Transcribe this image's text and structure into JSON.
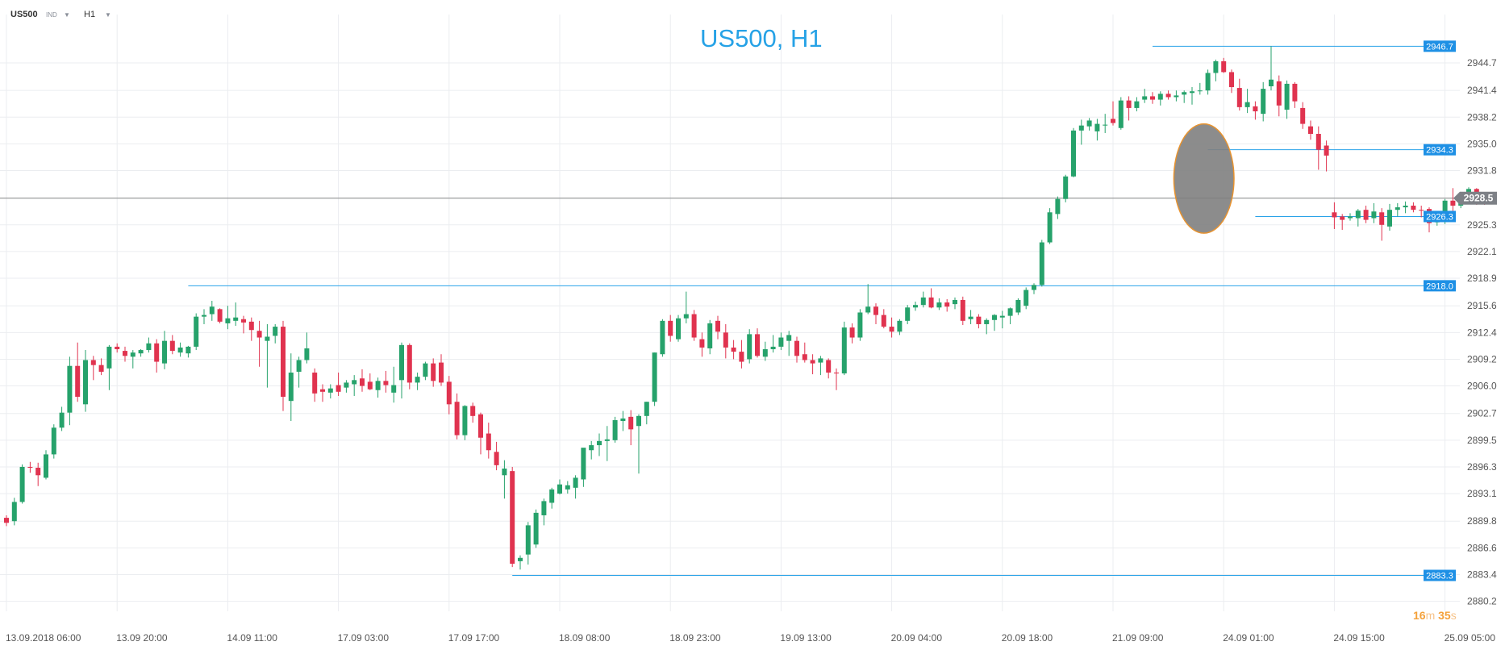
{
  "header": {
    "symbol": "US500",
    "class": "IND",
    "timeframe": "H1"
  },
  "chart_data": {
    "type": "candlestick",
    "title": "US500, H1",
    "ylim": [
      2879.0,
      2950.5
    ],
    "y_ticks": [
      2880.2,
      2883.4,
      2886.6,
      2889.8,
      2893.1,
      2896.3,
      2899.5,
      2902.7,
      2906.0,
      2909.2,
      2912.4,
      2915.6,
      2918.9,
      2922.1,
      2925.3,
      2928.5,
      2931.8,
      2935.0,
      2938.2,
      2941.4,
      2944.7
    ],
    "x_ticks": [
      {
        "label": "13.09.2018  06:00",
        "bar": 0
      },
      {
        "label": "13.09  20:00",
        "bar": 14
      },
      {
        "label": "14.09  11:00",
        "bar": 28
      },
      {
        "label": "17.09  03:00",
        "bar": 42
      },
      {
        "label": "17.09  17:00",
        "bar": 56
      },
      {
        "label": "18.09  08:00",
        "bar": 70
      },
      {
        "label": "18.09  23:00",
        "bar": 84
      },
      {
        "label": "19.09  13:00",
        "bar": 98
      },
      {
        "label": "20.09  04:00",
        "bar": 112
      },
      {
        "label": "20.09  18:00",
        "bar": 126
      },
      {
        "label": "21.09  09:00",
        "bar": 140
      },
      {
        "label": "24.09  01:00",
        "bar": 154
      },
      {
        "label": "24.09  15:00",
        "bar": 168
      },
      {
        "label": "25.09  05:00",
        "bar": 182
      }
    ],
    "candles": [
      [
        2890.2,
        2890.5,
        2889.2,
        2889.6
      ],
      [
        2889.8,
        2892.6,
        2889.3,
        2892.1
      ],
      [
        2892.1,
        2896.6,
        2891.9,
        2896.3
      ],
      [
        2896.3,
        2896.9,
        2895.6,
        2896.2
      ],
      [
        2896.2,
        2896.8,
        2894.0,
        2895.3
      ],
      [
        2895.0,
        2898.3,
        2894.8,
        2897.8
      ],
      [
        2897.8,
        2901.4,
        2897.3,
        2901.0
      ],
      [
        2901.0,
        2903.5,
        2900.6,
        2902.8
      ],
      [
        2902.8,
        2909.5,
        2901.3,
        2908.4
      ],
      [
        2908.4,
        2911.2,
        2904.1,
        2904.7
      ],
      [
        2903.8,
        2910.3,
        2902.9,
        2909.1
      ],
      [
        2909.1,
        2909.6,
        2906.7,
        2908.5
      ],
      [
        2908.5,
        2909.3,
        2907.3,
        2907.7
      ],
      [
        2908.1,
        2910.9,
        2905.5,
        2910.7
      ],
      [
        2910.7,
        2911.1,
        2910.0,
        2910.4
      ],
      [
        2910.2,
        2910.7,
        2908.9,
        2909.6
      ],
      [
        2909.5,
        2910.3,
        2908.1,
        2910.0
      ],
      [
        2909.9,
        2910.4,
        2909.5,
        2910.3
      ],
      [
        2910.3,
        2911.8,
        2910.0,
        2911.1
      ],
      [
        2911.1,
        2911.6,
        2907.6,
        2908.9
      ],
      [
        2908.7,
        2912.6,
        2908.0,
        2911.4
      ],
      [
        2911.4,
        2912.1,
        2909.8,
        2910.2
      ],
      [
        2910.0,
        2911.2,
        2909.5,
        2910.6
      ],
      [
        2909.9,
        2910.8,
        2909.4,
        2910.7
      ],
      [
        2910.7,
        2914.7,
        2910.3,
        2914.3
      ],
      [
        2914.3,
        2915.2,
        2913.4,
        2914.5
      ],
      [
        2914.6,
        2916.2,
        2913.8,
        2915.5
      ],
      [
        2915.2,
        2915.3,
        2913.5,
        2913.7
      ],
      [
        2913.5,
        2915.6,
        2912.8,
        2914.1
      ],
      [
        2913.8,
        2916.0,
        2913.2,
        2914.2
      ],
      [
        2914.0,
        2914.4,
        2912.3,
        2913.6
      ],
      [
        2913.7,
        2914.2,
        2911.4,
        2912.7
      ],
      [
        2912.6,
        2913.8,
        2908.3,
        2911.8
      ],
      [
        2911.4,
        2913.4,
        2905.8,
        2911.9
      ],
      [
        2912.0,
        2913.4,
        2911.1,
        2913.1
      ],
      [
        2913.1,
        2913.8,
        2903.0,
        2904.7
      ],
      [
        2904.2,
        2909.9,
        2901.8,
        2907.6
      ],
      [
        2907.7,
        2909.5,
        2905.8,
        2909.1
      ],
      [
        2909.1,
        2912.4,
        2908.7,
        2910.5
      ],
      [
        2907.6,
        2908.1,
        2904.1,
        2905.1
      ],
      [
        2905.6,
        2906.2,
        2904.1,
        2905.3
      ],
      [
        2905.2,
        2906.2,
        2904.5,
        2905.7
      ],
      [
        2906.1,
        2907.6,
        2904.8,
        2905.3
      ],
      [
        2905.8,
        2906.7,
        2905.2,
        2906.4
      ],
      [
        2906.2,
        2907.3,
        2904.8,
        2906.7
      ],
      [
        2906.9,
        2908.0,
        2905.3,
        2906.0
      ],
      [
        2906.5,
        2907.5,
        2905.5,
        2905.6
      ],
      [
        2905.5,
        2907.0,
        2904.6,
        2906.6
      ],
      [
        2906.6,
        2907.8,
        2905.2,
        2906.1
      ],
      [
        2905.2,
        2908.3,
        2904.0,
        2906.1
      ],
      [
        2906.7,
        2911.2,
        2904.5,
        2910.9
      ],
      [
        2910.9,
        2911.1,
        2905.6,
        2906.4
      ],
      [
        2906.4,
        2907.6,
        2905.5,
        2907.1
      ],
      [
        2907.1,
        2908.9,
        2906.7,
        2908.7
      ],
      [
        2908.7,
        2909.3,
        2905.9,
        2906.6
      ],
      [
        2908.8,
        2909.8,
        2906.0,
        2906.4
      ],
      [
        2906.5,
        2907.2,
        2902.6,
        2903.8
      ],
      [
        2904.1,
        2905.1,
        2899.6,
        2900.1
      ],
      [
        2900.1,
        2903.7,
        2899.5,
        2903.6
      ],
      [
        2903.6,
        2904.0,
        2901.6,
        2902.4
      ],
      [
        2902.6,
        2902.8,
        2897.8,
        2899.8
      ],
      [
        2900.3,
        2901.6,
        2897.3,
        2898.3
      ],
      [
        2898.1,
        2899.3,
        2895.9,
        2896.5
      ],
      [
        2895.3,
        2897.1,
        2892.5,
        2896.1
      ],
      [
        2895.8,
        2896.3,
        2884.3,
        2884.7
      ],
      [
        2885.0,
        2885.7,
        2884.0,
        2885.4
      ],
      [
        2885.8,
        2889.7,
        2884.6,
        2889.3
      ],
      [
        2887.0,
        2891.2,
        2886.6,
        2890.8
      ],
      [
        2890.5,
        2892.5,
        2889.3,
        2892.2
      ],
      [
        2892.0,
        2893.8,
        2891.3,
        2893.6
      ],
      [
        2893.1,
        2894.8,
        2893.0,
        2894.2
      ],
      [
        2893.6,
        2894.6,
        2893.1,
        2894.1
      ],
      [
        2893.8,
        2895.3,
        2892.5,
        2895.0
      ],
      [
        2894.8,
        2898.5,
        2893.9,
        2898.6
      ],
      [
        2898.3,
        2899.4,
        2897.2,
        2898.9
      ],
      [
        2898.9,
        2900.3,
        2897.6,
        2899.4
      ],
      [
        2899.4,
        2901.2,
        2897.0,
        2899.6
      ],
      [
        2899.5,
        2902.3,
        2899.2,
        2901.9
      ],
      [
        2901.8,
        2903.0,
        2900.6,
        2902.1
      ],
      [
        2902.3,
        2903.1,
        2898.9,
        2900.8
      ],
      [
        2901.2,
        2902.6,
        2895.5,
        2902.4
      ],
      [
        2902.4,
        2904.1,
        2901.4,
        2904.1
      ],
      [
        2904.1,
        2910.0,
        2903.6,
        2910.0
      ],
      [
        2909.8,
        2914.0,
        2909.5,
        2913.8
      ],
      [
        2913.8,
        2914.5,
        2911.3,
        2912.0
      ],
      [
        2911.6,
        2914.5,
        2911.3,
        2914.1
      ],
      [
        2914.1,
        2917.3,
        2913.5,
        2914.6
      ],
      [
        2914.6,
        2915.1,
        2911.4,
        2911.8
      ],
      [
        2911.6,
        2912.4,
        2909.5,
        2910.6
      ],
      [
        2910.5,
        2913.9,
        2909.8,
        2913.5
      ],
      [
        2913.8,
        2914.4,
        2911.6,
        2912.5
      ],
      [
        2912.4,
        2913.4,
        2909.3,
        2910.6
      ],
      [
        2910.6,
        2911.5,
        2909.2,
        2910.1
      ],
      [
        2910.1,
        2911.5,
        2908.1,
        2908.9
      ],
      [
        2909.2,
        2912.8,
        2908.7,
        2912.2
      ],
      [
        2912.2,
        2912.9,
        2909.4,
        2909.6
      ],
      [
        2909.5,
        2911.3,
        2909.0,
        2910.4
      ],
      [
        2910.4,
        2912.1,
        2910.0,
        2910.7
      ],
      [
        2910.7,
        2912.4,
        2910.3,
        2911.8
      ],
      [
        2911.4,
        2912.6,
        2909.6,
        2912.1
      ],
      [
        2911.4,
        2911.9,
        2908.8,
        2909.6
      ],
      [
        2909.8,
        2911.2,
        2908.8,
        2909.1
      ],
      [
        2909.1,
        2909.8,
        2907.4,
        2908.7
      ],
      [
        2908.8,
        2909.6,
        2907.3,
        2909.3
      ],
      [
        2909.1,
        2909.3,
        2906.9,
        2907.6
      ],
      [
        2907.6,
        2908.1,
        2905.5,
        2907.5
      ],
      [
        2907.5,
        2913.7,
        2907.3,
        2913.0
      ],
      [
        2913.0,
        2913.5,
        2911.1,
        2911.8
      ],
      [
        2911.8,
        2915.2,
        2911.4,
        2914.8
      ],
      [
        2914.8,
        2918.2,
        2914.6,
        2915.5
      ],
      [
        2915.5,
        2915.9,
        2913.4,
        2914.5
      ],
      [
        2914.5,
        2915.2,
        2912.9,
        2913.1
      ],
      [
        2913.1,
        2914.2,
        2911.8,
        2912.5
      ],
      [
        2912.5,
        2914.0,
        2912.1,
        2913.8
      ],
      [
        2913.8,
        2915.7,
        2913.4,
        2915.4
      ],
      [
        2915.4,
        2916.1,
        2915.0,
        2915.7
      ],
      [
        2915.7,
        2917.3,
        2915.4,
        2916.6
      ],
      [
        2916.6,
        2917.7,
        2915.3,
        2915.4
      ],
      [
        2915.4,
        2916.5,
        2915.1,
        2916.0
      ],
      [
        2916.0,
        2916.4,
        2914.9,
        2915.5
      ],
      [
        2915.8,
        2916.6,
        2915.2,
        2916.3
      ],
      [
        2916.3,
        2916.7,
        2913.3,
        2913.8
      ],
      [
        2914.0,
        2915.1,
        2913.4,
        2914.3
      ],
      [
        2914.3,
        2914.6,
        2912.9,
        2913.4
      ],
      [
        2913.4,
        2914.1,
        2912.2,
        2913.9
      ],
      [
        2913.9,
        2914.6,
        2912.6,
        2914.5
      ],
      [
        2914.2,
        2915.0,
        2912.9,
        2914.4
      ],
      [
        2914.4,
        2915.4,
        2913.4,
        2915.3
      ],
      [
        2914.8,
        2916.5,
        2914.5,
        2916.3
      ],
      [
        2915.6,
        2917.8,
        2915.2,
        2917.5
      ],
      [
        2917.5,
        2918.3,
        2917.0,
        2918.1
      ],
      [
        2918.1,
        2923.5,
        2917.9,
        2923.2
      ],
      [
        2923.2,
        2927.3,
        2923.0,
        2926.8
      ],
      [
        2926.6,
        2928.7,
        2926.0,
        2928.4
      ],
      [
        2928.4,
        2931.3,
        2928.0,
        2931.1
      ],
      [
        2931.1,
        2936.9,
        2931.0,
        2936.6
      ],
      [
        2936.6,
        2937.9,
        2934.9,
        2937.2
      ],
      [
        2937.1,
        2938.1,
        2936.6,
        2937.8
      ],
      [
        2936.5,
        2938.0,
        2935.4,
        2937.4
      ],
      [
        2937.2,
        2938.6,
        2936.3,
        2937.3
      ],
      [
        2938.0,
        2940.1,
        2937.2,
        2937.5
      ],
      [
        2936.9,
        2940.6,
        2936.7,
        2940.2
      ],
      [
        2940.2,
        2940.7,
        2937.8,
        2939.3
      ],
      [
        2939.3,
        2940.6,
        2938.9,
        2940.1
      ],
      [
        2940.3,
        2941.6,
        2939.9,
        2940.7
      ],
      [
        2940.7,
        2941.2,
        2939.8,
        2940.3
      ],
      [
        2940.3,
        2941.3,
        2939.6,
        2941.0
      ],
      [
        2941.0,
        2941.4,
        2940.3,
        2940.6
      ],
      [
        2940.6,
        2941.4,
        2940.1,
        2940.8
      ],
      [
        2940.9,
        2941.4,
        2939.9,
        2941.2
      ],
      [
        2941.1,
        2941.8,
        2939.7,
        2941.3
      ],
      [
        2941.3,
        2942.3,
        2940.9,
        2941.4
      ],
      [
        2941.4,
        2943.9,
        2940.9,
        2943.5
      ],
      [
        2943.5,
        2945.1,
        2942.5,
        2944.9
      ],
      [
        2944.9,
        2945.3,
        2943.5,
        2943.6
      ],
      [
        2943.6,
        2943.9,
        2941.1,
        2941.8
      ],
      [
        2941.7,
        2942.8,
        2939.0,
        2939.4
      ],
      [
        2939.4,
        2941.6,
        2938.7,
        2940.0
      ],
      [
        2939.5,
        2940.1,
        2937.9,
        2938.9
      ],
      [
        2938.6,
        2942.4,
        2937.7,
        2941.6
      ],
      [
        2941.9,
        2946.7,
        2941.4,
        2942.7
      ],
      [
        2942.5,
        2943.2,
        2938.3,
        2939.6
      ],
      [
        2939.1,
        2942.6,
        2938.0,
        2942.2
      ],
      [
        2942.2,
        2942.4,
        2939.3,
        2940.1
      ],
      [
        2939.3,
        2940.0,
        2936.8,
        2937.4
      ],
      [
        2937.1,
        2937.8,
        2935.5,
        2936.2
      ],
      [
        2936.2,
        2937.1,
        2931.9,
        2934.3
      ],
      [
        2934.8,
        2935.4,
        2931.7,
        2933.6
      ],
      [
        2926.8,
        2928.0,
        2924.8,
        2926.2
      ],
      [
        2926.3,
        2926.6,
        2924.7,
        2925.9
      ],
      [
        2926.1,
        2926.7,
        2925.8,
        2926.3
      ],
      [
        2926.1,
        2927.2,
        2925.1,
        2927.0
      ],
      [
        2927.1,
        2927.6,
        2925.5,
        2925.9
      ],
      [
        2926.1,
        2927.9,
        2925.5,
        2926.9
      ],
      [
        2926.8,
        2927.3,
        2923.4,
        2925.3
      ],
      [
        2925.1,
        2927.8,
        2924.6,
        2927.1
      ],
      [
        2927.1,
        2927.9,
        2926.3,
        2927.4
      ],
      [
        2927.4,
        2928.1,
        2926.7,
        2927.6
      ],
      [
        2927.6,
        2928.0,
        2926.8,
        2927.1
      ],
      [
        2927.1,
        2927.6,
        2926.2,
        2927.0
      ],
      [
        2927.2,
        2927.4,
        2924.4,
        2925.5
      ],
      [
        2925.6,
        2926.9,
        2925.2,
        2926.3
      ],
      [
        2926.2,
        2928.4,
        2925.4,
        2928.2
      ],
      [
        2928.2,
        2929.7,
        2926.9,
        2927.6
      ],
      [
        2927.6,
        2928.9,
        2927.3,
        2928.8
      ],
      [
        2928.8,
        2929.8,
        2927.9,
        2929.6
      ],
      [
        2929.6,
        2929.7,
        2927.7,
        2928.0
      ],
      [
        2928.6,
        2929.0,
        2927.7,
        2928.5
      ]
    ],
    "levels": [
      {
        "label": "2946.7",
        "value": 2946.7,
        "from_bar": 145
      },
      {
        "label": "2934.3",
        "value": 2934.3,
        "from_bar": 152
      },
      {
        "label": "2926.3",
        "value": 2926.3,
        "from_bar": 158
      },
      {
        "label": "2918.0",
        "value": 2918.0,
        "from_bar": 23
      },
      {
        "label": "2883.3",
        "value": 2883.3,
        "from_bar": 64
      }
    ],
    "current_price": {
      "label": "2928.5",
      "value": 2928.5
    },
    "annotation": {
      "type": "ellipse",
      "bar_from": 148,
      "bar_to": 155,
      "y_top": 2937.4,
      "y_bottom": 2924.3
    },
    "colors": {
      "up": "#26a26b",
      "down": "#e0334f",
      "level": "#2aa3e8",
      "grid": "#ebedf0",
      "axis_text": "#555555",
      "price_line": "#888888",
      "price_tag": "#7d8086",
      "ellipse_fill": "#7f7f7f",
      "ellipse_stroke": "#e8932f"
    }
  },
  "timer": {
    "minutes": "16",
    "m_unit": "m",
    "seconds": "35",
    "s_unit": "s"
  }
}
